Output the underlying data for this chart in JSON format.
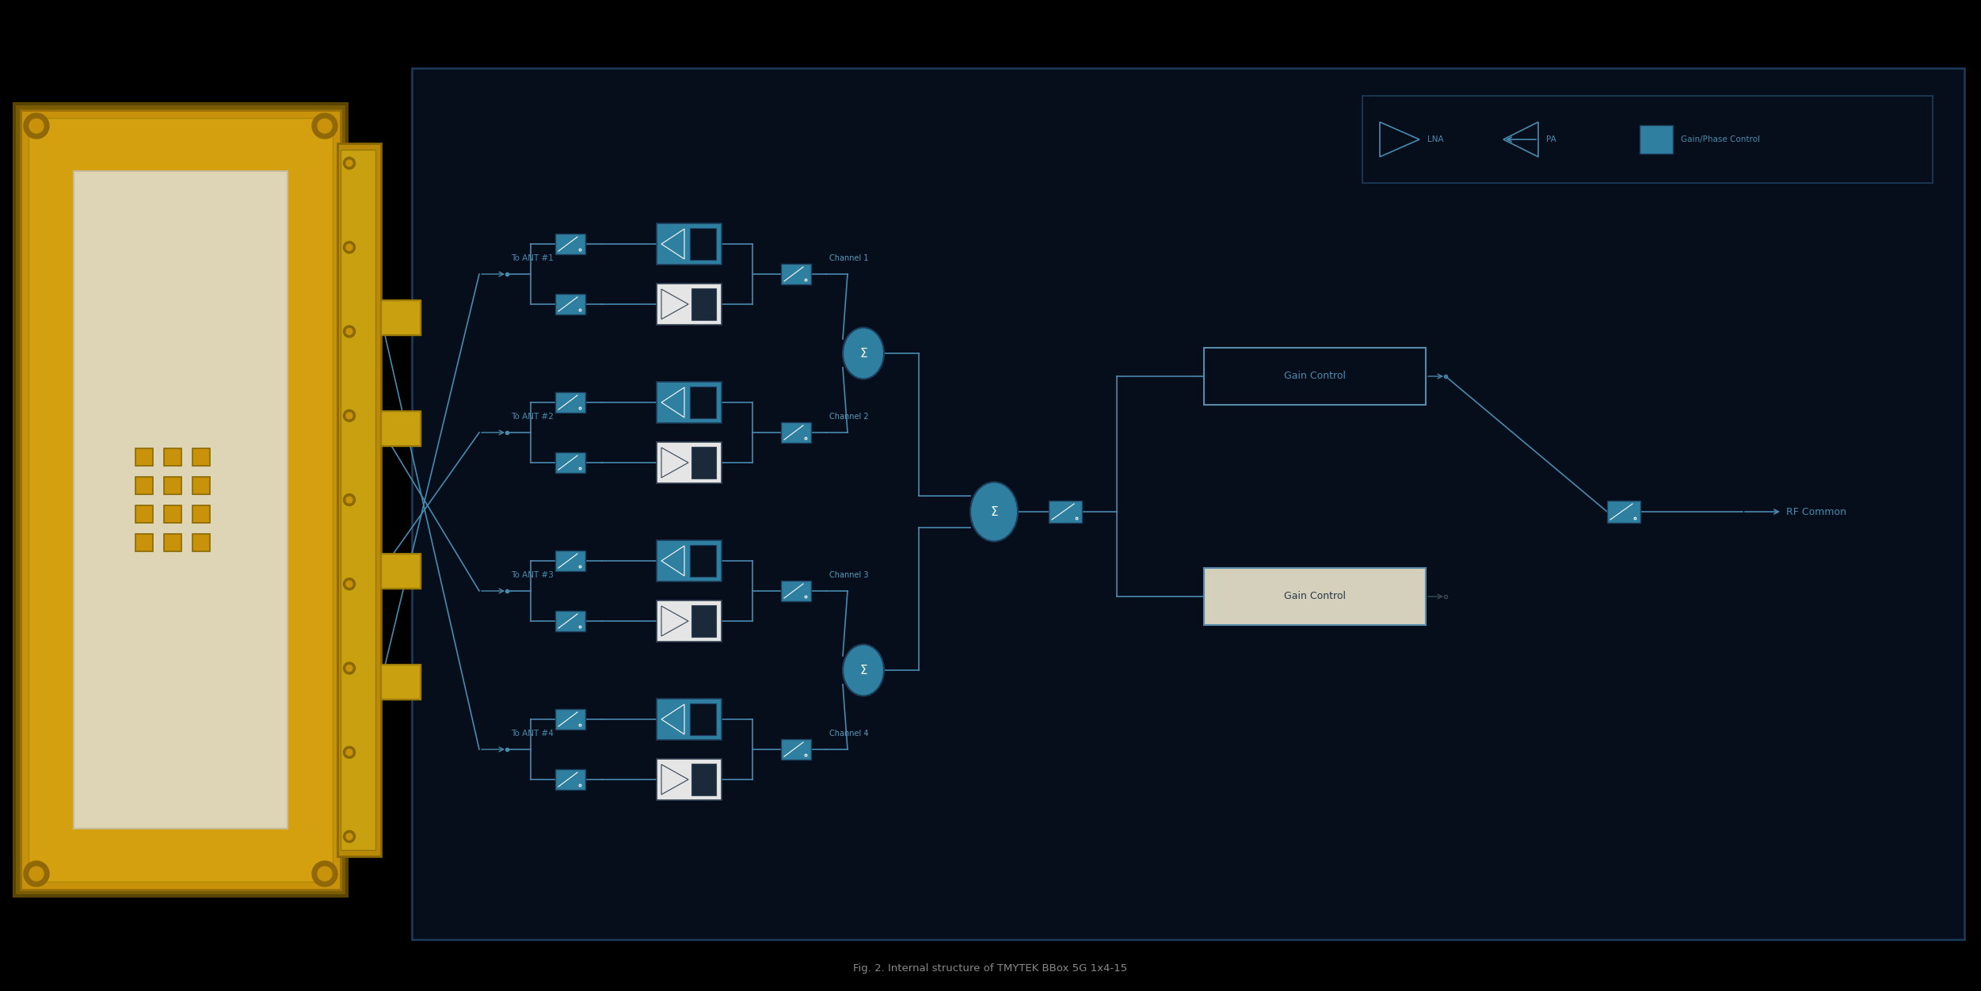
{
  "bg_color": "#000000",
  "panel_bg": "#050e1a",
  "border_color": "#1e3d5c",
  "teal_color": "#2e7fa0",
  "dark_navy": "#08111e",
  "white_box": "#e5e5e5",
  "text_color": "#4a8aaf",
  "label_color": "#5a9abf",
  "gain_ctrl_border": "#5a8aaa",
  "title": "Fig. 2. Internal structure of TMYTEK BBox 5G 1x4-15",
  "channels": [
    "Channel 1",
    "Channel 2",
    "Channel 3",
    "Channel 4"
  ],
  "ant_labels": [
    "To ANT #1",
    "To ANT #2",
    "To ANT #3",
    "To ANT #4"
  ],
  "gain_control_labels": [
    "Gain Control",
    "Gain Control"
  ],
  "rf_label": "RF Common",
  "legend_lna": "LNA",
  "legend_pa": "PA",
  "legend_gpc": "Gain/Phase Control"
}
